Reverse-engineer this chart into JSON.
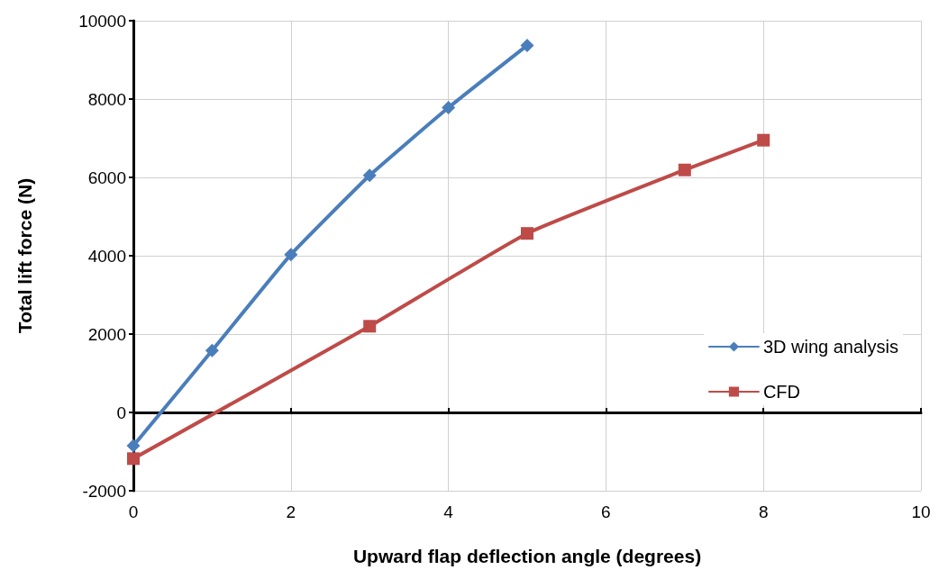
{
  "chart_data": {
    "type": "line",
    "xlabel": "Upward flap deflection angle (degrees)",
    "ylabel": "Total lift force (N)",
    "x": [
      0,
      1,
      2,
      3,
      4,
      5
    ],
    "series": [
      {
        "name": "3D wing analysis",
        "color": "#4a7ebb",
        "marker": "diamond",
        "values": [
          -850,
          1580,
          4030,
          6050,
          7780,
          9370
        ]
      },
      {
        "name": "CFD",
        "color": "#be4b48",
        "marker": "square",
        "x": [
          0,
          3,
          5,
          7,
          8
        ],
        "values": [
          -1180,
          2200,
          4570,
          6190,
          6950
        ]
      }
    ],
    "xlim": [
      0,
      10
    ],
    "xticks": [
      0,
      2,
      4,
      6,
      8,
      10
    ],
    "ylim": [
      -2000,
      10000
    ],
    "yticks": [
      -2000,
      0,
      2000,
      4000,
      6000,
      8000,
      10000
    ],
    "grid": true,
    "legend": "right",
    "line_style": "solid"
  }
}
